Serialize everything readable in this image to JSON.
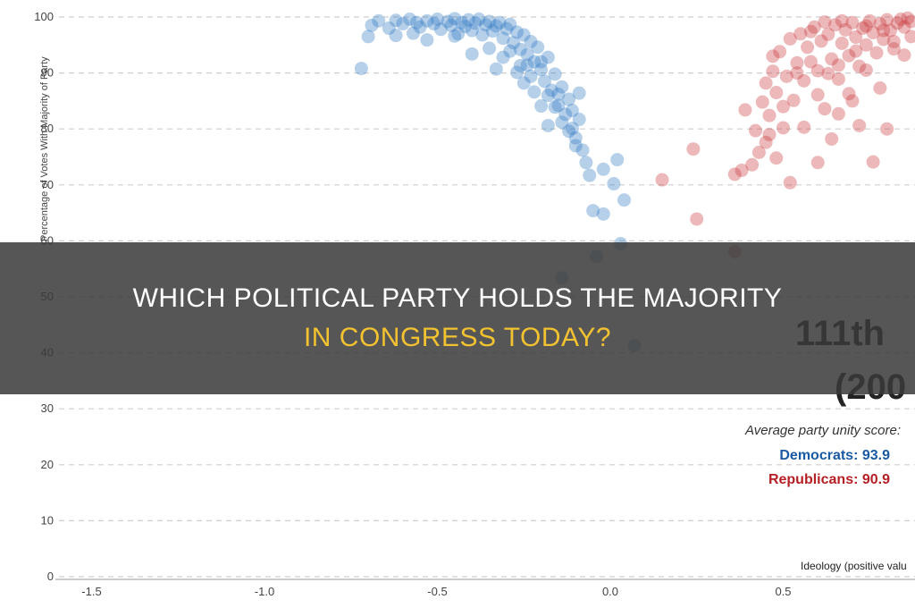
{
  "headline": {
    "line1": "WHICH POLITICAL PARTY HOLDS THE MAJORITY",
    "line2": "IN CONGRESS TODAY?"
  },
  "colors": {
    "democrats": "#2f78c4",
    "republicans": "#c9343a",
    "headline_highlight": "#f2c230"
  },
  "chart_data": {
    "type": "scatter",
    "title": "111th",
    "subtitle": "(200",
    "xlabel": "Ideology (positive valu",
    "ylabel": "Percentage of Votes With Majority of Party",
    "xlim": [
      -1.5,
      0.9
    ],
    "ylim": [
      0,
      100
    ],
    "x_ticks": [
      "-1.5",
      "-1.0",
      "-0.5",
      "0.0",
      "0.5"
    ],
    "y_ticks": [
      "0",
      "10",
      "20",
      "30",
      "40",
      "50",
      "60",
      "70",
      "80",
      "90",
      "100"
    ],
    "grid": "horizontal dashed",
    "annotation": {
      "heading": "Average party unity score:",
      "democrats_label": "Democrats: 93.9",
      "republicans_label": "Republicans: 90.9"
    },
    "series": [
      {
        "name": "Democrats",
        "color": "#2f78c4",
        "points": [
          [
            -0.72,
            90.8
          ],
          [
            -0.7,
            96.5
          ],
          [
            -0.69,
            98.5
          ],
          [
            -0.67,
            99.3
          ],
          [
            -0.64,
            98.0
          ],
          [
            -0.62,
            99.4
          ],
          [
            -0.6,
            98.8
          ],
          [
            -0.58,
            99.6
          ],
          [
            -0.56,
            99.0
          ],
          [
            -0.55,
            98.2
          ],
          [
            -0.53,
            99.3
          ],
          [
            -0.51,
            98.8
          ],
          [
            -0.5,
            99.6
          ],
          [
            -0.49,
            97.8
          ],
          [
            -0.47,
            99.2
          ],
          [
            -0.46,
            98.5
          ],
          [
            -0.45,
            99.7
          ],
          [
            -0.44,
            97.0
          ],
          [
            -0.43,
            99.0
          ],
          [
            -0.42,
            98.3
          ],
          [
            -0.41,
            99.5
          ],
          [
            -0.4,
            97.6
          ],
          [
            -0.39,
            98.9
          ],
          [
            -0.38,
            99.6
          ],
          [
            -0.37,
            96.8
          ],
          [
            -0.36,
            98.6
          ],
          [
            -0.35,
            99.2
          ],
          [
            -0.34,
            97.5
          ],
          [
            -0.33,
            98.4
          ],
          [
            -0.32,
            99.0
          ],
          [
            -0.31,
            96.2
          ],
          [
            -0.3,
            97.9
          ],
          [
            -0.29,
            98.7
          ],
          [
            -0.28,
            95.4
          ],
          [
            -0.27,
            97.3
          ],
          [
            -0.26,
            94.2
          ],
          [
            -0.25,
            96.8
          ],
          [
            -0.24,
            93.3
          ],
          [
            -0.23,
            95.6
          ],
          [
            -0.22,
            92.0
          ],
          [
            -0.21,
            94.6
          ],
          [
            -0.2,
            90.6
          ],
          [
            -0.19,
            88.5
          ],
          [
            -0.18,
            92.8
          ],
          [
            -0.17,
            86.9
          ],
          [
            -0.16,
            89.8
          ],
          [
            -0.15,
            84.2
          ],
          [
            -0.14,
            87.5
          ],
          [
            -0.13,
            82.6
          ],
          [
            -0.12,
            85.3
          ],
          [
            -0.11,
            80.1
          ],
          [
            -0.1,
            78.4
          ],
          [
            -0.09,
            81.7
          ],
          [
            -0.08,
            76.2
          ],
          [
            -0.07,
            74.0
          ],
          [
            -0.06,
            71.7
          ],
          [
            -0.45,
            96.6
          ],
          [
            -0.4,
            93.4
          ],
          [
            -0.35,
            94.4
          ],
          [
            -0.33,
            90.7
          ],
          [
            -0.31,
            92.8
          ],
          [
            -0.29,
            93.9
          ],
          [
            -0.27,
            90.1
          ],
          [
            -0.25,
            88.2
          ],
          [
            -0.24,
            91.4
          ],
          [
            -0.22,
            86.6
          ],
          [
            -0.2,
            84.1
          ],
          [
            -0.18,
            86.0
          ],
          [
            -0.16,
            83.9
          ],
          [
            -0.14,
            81.2
          ],
          [
            -0.12,
            79.6
          ],
          [
            -0.1,
            77.0
          ],
          [
            -0.62,
            96.7
          ],
          [
            -0.53,
            95.9
          ],
          [
            -0.57,
            97.1
          ],
          [
            -0.05,
            65.4
          ],
          [
            -0.02,
            64.8
          ],
          [
            0.02,
            74.5
          ],
          [
            0.04,
            67.3
          ],
          [
            0.01,
            70.2
          ],
          [
            0.03,
            59.5
          ],
          [
            -0.04,
            57.2
          ],
          [
            -0.14,
            53.4
          ],
          [
            0.07,
            41.3
          ],
          [
            -0.2,
            92.0
          ],
          [
            -0.26,
            91.3
          ],
          [
            -0.23,
            89.4
          ],
          [
            -0.18,
            80.6
          ],
          [
            -0.15,
            86.2
          ],
          [
            -0.11,
            83.3
          ],
          [
            -0.09,
            86.4
          ],
          [
            -0.02,
            72.8
          ]
        ]
      },
      {
        "name": "Republicans",
        "color": "#c9343a",
        "points": [
          [
            0.15,
            70.9
          ],
          [
            0.24,
            76.4
          ],
          [
            0.25,
            63.9
          ],
          [
            0.36,
            71.9
          ],
          [
            0.36,
            58.1
          ],
          [
            0.38,
            72.6
          ],
          [
            0.39,
            83.4
          ],
          [
            0.41,
            73.6
          ],
          [
            0.42,
            79.7
          ],
          [
            0.43,
            75.8
          ],
          [
            0.44,
            84.8
          ],
          [
            0.45,
            77.6
          ],
          [
            0.45,
            88.2
          ],
          [
            0.46,
            82.4
          ],
          [
            0.47,
            90.3
          ],
          [
            0.48,
            74.8
          ],
          [
            0.48,
            86.5
          ],
          [
            0.49,
            93.8
          ],
          [
            0.5,
            80.2
          ],
          [
            0.51,
            89.4
          ],
          [
            0.52,
            96.1
          ],
          [
            0.53,
            85.1
          ],
          [
            0.54,
            91.8
          ],
          [
            0.55,
            97.0
          ],
          [
            0.56,
            88.6
          ],
          [
            0.57,
            94.6
          ],
          [
            0.58,
            92.0
          ],
          [
            0.59,
            98.2
          ],
          [
            0.6,
            90.4
          ],
          [
            0.61,
            95.7
          ],
          [
            0.62,
            83.6
          ],
          [
            0.63,
            96.9
          ],
          [
            0.64,
            92.5
          ],
          [
            0.65,
            98.6
          ],
          [
            0.66,
            88.9
          ],
          [
            0.67,
            95.3
          ],
          [
            0.68,
            97.7
          ],
          [
            0.69,
            93.1
          ],
          [
            0.7,
            99.0
          ],
          [
            0.71,
            96.4
          ],
          [
            0.72,
            91.2
          ],
          [
            0.73,
            98.0
          ],
          [
            0.74,
            95.0
          ],
          [
            0.75,
            99.3
          ],
          [
            0.76,
            97.2
          ],
          [
            0.77,
            93.6
          ],
          [
            0.78,
            98.8
          ],
          [
            0.79,
            96.0
          ],
          [
            0.8,
            99.5
          ],
          [
            0.81,
            97.6
          ],
          [
            0.82,
            94.3
          ],
          [
            0.83,
            98.9
          ],
          [
            0.84,
            99.6
          ],
          [
            0.85,
            98.2
          ],
          [
            0.86,
            99.8
          ],
          [
            0.87,
            99.2
          ],
          [
            0.56,
            80.3
          ],
          [
            0.6,
            86.1
          ],
          [
            0.63,
            89.9
          ],
          [
            0.66,
            82.7
          ],
          [
            0.69,
            86.3
          ],
          [
            0.72,
            80.6
          ],
          [
            0.76,
            74.1
          ],
          [
            0.78,
            87.3
          ],
          [
            0.8,
            80.0
          ],
          [
            0.64,
            78.2
          ],
          [
            0.6,
            74.0
          ],
          [
            0.52,
            70.4
          ],
          [
            0.7,
            85.0
          ],
          [
            0.74,
            90.5
          ],
          [
            0.58,
            97.4
          ],
          [
            0.62,
            99.1
          ],
          [
            0.67,
            99.3
          ],
          [
            0.74,
            98.4
          ],
          [
            0.79,
            97.6
          ],
          [
            0.82,
            95.6
          ],
          [
            0.87,
            96.5
          ],
          [
            0.85,
            93.2
          ],
          [
            0.71,
            93.9
          ],
          [
            0.66,
            91.4
          ],
          [
            0.47,
            93.0
          ],
          [
            0.54,
            90.0
          ],
          [
            0.5,
            84.0
          ],
          [
            0.46,
            79.0
          ]
        ]
      }
    ]
  }
}
